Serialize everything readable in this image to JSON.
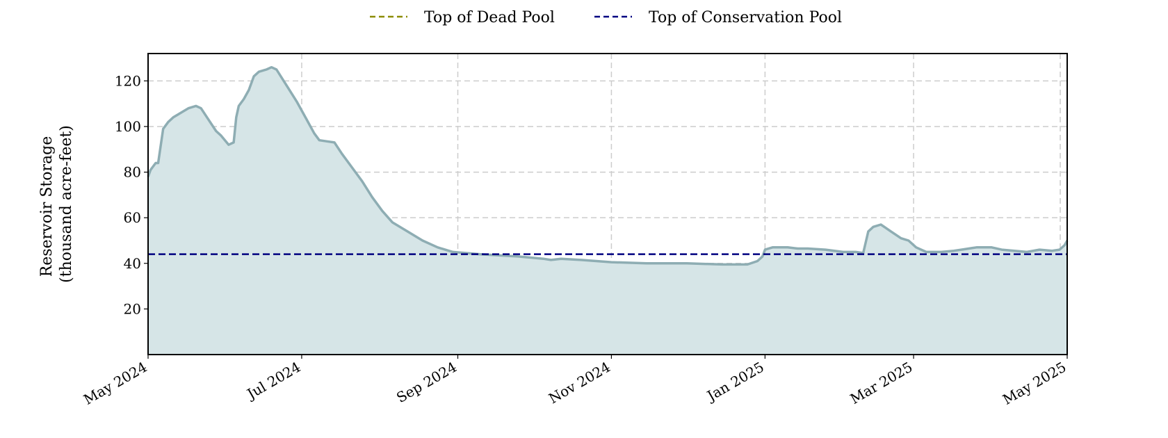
{
  "chart_data": {
    "type": "area",
    "ylabel_line1": "Reservoir Storage",
    "ylabel_line2": "(thousand acre-feet)",
    "ylim": [
      0,
      132
    ],
    "yticks": [
      20,
      40,
      60,
      80,
      100,
      120
    ],
    "xlim": [
      "2024-05-01",
      "2025-05-01"
    ],
    "xticks": [
      {
        "date": "2024-05-01",
        "label": "May 2024"
      },
      {
        "date": "2024-07-01",
        "label": "Jul 2024"
      },
      {
        "date": "2024-09-01",
        "label": "Sep 2024"
      },
      {
        "date": "2024-11-01",
        "label": "Nov 2024"
      },
      {
        "date": "2025-01-01",
        "label": "Jan 2025"
      },
      {
        "date": "2025-03-01",
        "label": "Mar 2025"
      },
      {
        "date": "2025-05-01",
        "label": "May 2025"
      }
    ],
    "grid": true,
    "legend_placement": "top-center",
    "legend": [
      {
        "label": "Top of Dead Pool",
        "color": "#8b8b00",
        "style": "dashed"
      },
      {
        "label": "Top of Conservation Pool",
        "color": "#000080",
        "style": "dashed"
      }
    ],
    "reference_lines": [
      {
        "name": "Top of Conservation Pool",
        "value": 44,
        "color": "#000080"
      }
    ],
    "series": [
      {
        "color": "#8eadb3",
        "fill": "#d6e5e7",
        "points": [
          [
            "2024-04-30",
            78
          ],
          [
            "2024-05-02",
            81
          ],
          [
            "2024-05-04",
            84
          ],
          [
            "2024-05-05",
            84
          ],
          [
            "2024-05-07",
            99
          ],
          [
            "2024-05-09",
            102
          ],
          [
            "2024-05-11",
            104
          ],
          [
            "2024-05-14",
            106
          ],
          [
            "2024-05-17",
            108
          ],
          [
            "2024-05-20",
            109
          ],
          [
            "2024-05-22",
            108
          ],
          [
            "2024-05-25",
            103
          ],
          [
            "2024-05-28",
            98
          ],
          [
            "2024-05-30",
            96
          ],
          [
            "2024-06-02",
            92
          ],
          [
            "2024-06-04",
            93
          ],
          [
            "2024-06-05",
            104
          ],
          [
            "2024-06-06",
            109
          ],
          [
            "2024-06-08",
            112
          ],
          [
            "2024-06-10",
            116
          ],
          [
            "2024-06-12",
            122
          ],
          [
            "2024-06-14",
            124
          ],
          [
            "2024-06-17",
            125
          ],
          [
            "2024-06-19",
            126
          ],
          [
            "2024-06-21",
            125
          ],
          [
            "2024-06-25",
            118
          ],
          [
            "2024-06-29",
            111
          ],
          [
            "2024-07-03",
            103
          ],
          [
            "2024-07-06",
            97
          ],
          [
            "2024-07-08",
            94
          ],
          [
            "2024-07-11",
            93.5
          ],
          [
            "2024-07-14",
            93
          ],
          [
            "2024-07-17",
            88
          ],
          [
            "2024-07-21",
            82
          ],
          [
            "2024-07-25",
            76
          ],
          [
            "2024-07-29",
            69
          ],
          [
            "2024-08-02",
            63
          ],
          [
            "2024-08-06",
            58
          ],
          [
            "2024-08-12",
            54
          ],
          [
            "2024-08-18",
            50
          ],
          [
            "2024-08-24",
            47
          ],
          [
            "2024-08-30",
            45
          ],
          [
            "2024-09-10",
            44
          ],
          [
            "2024-09-25",
            43
          ],
          [
            "2024-10-05",
            42
          ],
          [
            "2024-10-08",
            41.5
          ],
          [
            "2024-10-12",
            42
          ],
          [
            "2024-10-20",
            41.5
          ],
          [
            "2024-11-01",
            40.5
          ],
          [
            "2024-11-15",
            40
          ],
          [
            "2024-12-01",
            40
          ],
          [
            "2024-12-15",
            39.5
          ],
          [
            "2024-12-25",
            39.5
          ],
          [
            "2024-12-29",
            41
          ],
          [
            "2024-12-31",
            43
          ],
          [
            "2025-01-01",
            46
          ],
          [
            "2025-01-04",
            47
          ],
          [
            "2025-01-10",
            47
          ],
          [
            "2025-01-14",
            46.5
          ],
          [
            "2025-01-18",
            46.5
          ],
          [
            "2025-01-25",
            46
          ],
          [
            "2025-02-01",
            45
          ],
          [
            "2025-02-06",
            45
          ],
          [
            "2025-02-09",
            44.5
          ],
          [
            "2025-02-11",
            54
          ],
          [
            "2025-02-13",
            56
          ],
          [
            "2025-02-16",
            57
          ],
          [
            "2025-02-20",
            54
          ],
          [
            "2025-02-24",
            51
          ],
          [
            "2025-02-27",
            50
          ],
          [
            "2025-03-02",
            47
          ],
          [
            "2025-03-06",
            45
          ],
          [
            "2025-03-12",
            45
          ],
          [
            "2025-03-17",
            45.5
          ],
          [
            "2025-03-20",
            46
          ],
          [
            "2025-03-26",
            47
          ],
          [
            "2025-04-01",
            47
          ],
          [
            "2025-04-05",
            46
          ],
          [
            "2025-04-10",
            45.5
          ],
          [
            "2025-04-15",
            45
          ],
          [
            "2025-04-20",
            46
          ],
          [
            "2025-04-25",
            45.5
          ],
          [
            "2025-04-28",
            46
          ],
          [
            "2025-04-30",
            48
          ],
          [
            "2025-05-01",
            50
          ]
        ]
      }
    ]
  }
}
